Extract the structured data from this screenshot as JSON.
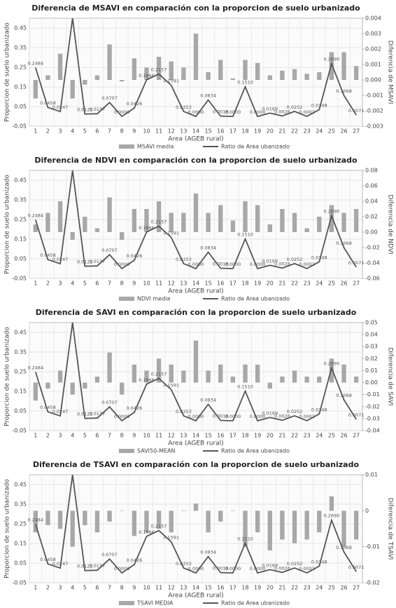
{
  "chart_data": [
    {
      "type": "bar-line",
      "title": "Diferencia de MSAVI en comparación con la proporcion de suelo urbanizado",
      "xlabel": "Area (AGEB rural)",
      "ylabel": "Proporcion de suelo urbanizado",
      "y2label": "Diferencia de MSAVI",
      "categories": [
        "1",
        "2",
        "3",
        "4",
        "5",
        "6",
        "7",
        "8",
        "9",
        "10",
        "11",
        "12",
        "13",
        "14",
        "15",
        "16",
        "17",
        "18",
        "19",
        "20",
        "21",
        "22",
        "23",
        "24",
        "25",
        "26",
        "27"
      ],
      "ylim": [
        -0.05,
        0.5
      ],
      "yticks": [
        -0.05,
        0.05,
        0.15,
        0.25,
        0.35,
        0.45
      ],
      "y2lim": [
        -0.003,
        0.004
      ],
      "y2ticks": [
        -0.003,
        -0.002,
        -0.001,
        {
          "value": 0,
          "label": "0.000"
        },
        0.001,
        0.002,
        0.003,
        0.004
      ],
      "grid": true,
      "legend": "bottom",
      "series": [
        {
          "name": "MSAVI media",
          "type": "bar",
          "axis": "y2",
          "color": "#a8a8a8",
          "values": [
            -0.0012,
            0.0003,
            0.0017,
            -0.0012,
            -0.0003,
            0.0003,
            0.0023,
            -0.0001,
            0.0014,
            0.0008,
            0.0015,
            0.0012,
            0.0008,
            0.003,
            0.0005,
            0.0013,
            0.0001,
            0.0013,
            0.0011,
            0.0003,
            0.0006,
            0.0007,
            0.0004,
            0.0005,
            0.0018,
            0.0018,
            0.0009
          ]
        },
        {
          "name": "Ratio de Area ubanizado",
          "type": "line",
          "axis": "y",
          "color": "#555555",
          "values": [
            0.2484,
            0.0458,
            0.0247,
            0.5,
            0.0122,
            0.0137,
            0.0707,
            0.0,
            0.0426,
            0.1866,
            0.2157,
            0.1591,
            0.0253,
            0.0,
            0.0834,
            0.0019,
            0.0,
            0.151,
            0.0,
            0.0169,
            0.0026,
            0.0252,
            0.0002,
            0.0348,
            0.269,
            0.1068,
            0.0071
          ],
          "value_labels": [
            "0.2484",
            "0.0458",
            "0.0247",
            null,
            "0.0122",
            "0.0137",
            "0.0707",
            "0.0000",
            "0.0426",
            "0.1866",
            "0.2157",
            "0.1591",
            "0.0253",
            "0.0000",
            "0.0834",
            "0.0019",
            "0.0000",
            "0.1510",
            "0.0000",
            "0.0169",
            "0.0026",
            "0.0252",
            "0.0002",
            "0.0348",
            "0.2690",
            "0.1068",
            "0.0071"
          ]
        }
      ]
    },
    {
      "type": "bar-line",
      "title": "Diferencia de NDVI en comparación con la proporcion de suelo urbanizado",
      "xlabel": "Area (AGEB rural)",
      "ylabel": "Proporcion de suelo urbanizado",
      "y2label": "Diferencia de NDVI",
      "categories": [
        "1",
        "2",
        "3",
        "4",
        "5",
        "6",
        "7",
        "8",
        "9",
        "10",
        "11",
        "12",
        "13",
        "14",
        "15",
        "16",
        "17",
        "18",
        "19",
        "20",
        "21",
        "22",
        "23",
        "24",
        "25",
        "26",
        "27"
      ],
      "ylim": [
        -0.05,
        0.5
      ],
      "yticks": [
        -0.05,
        0.05,
        0.15,
        0.25,
        0.35,
        0.45
      ],
      "y2lim": [
        -0.06,
        0.08
      ],
      "y2ticks": [
        -0.06,
        -0.04,
        -0.02,
        {
          "value": 0,
          "label": "0.00"
        },
        0.02,
        0.04,
        0.06,
        0.08
      ],
      "grid": true,
      "legend": "bottom",
      "series": [
        {
          "name": "NDVI media",
          "type": "bar",
          "axis": "y2",
          "color": "#a8a8a8",
          "values": [
            0.01,
            0.025,
            0.04,
            -0.01,
            0.02,
            0.005,
            0.045,
            -0.01,
            0.03,
            0.03,
            0.04,
            0.025,
            0.025,
            0.05,
            0.025,
            0.035,
            0.015,
            0.04,
            0.035,
            0.01,
            0.03,
            0.025,
            0.005,
            0.02,
            0.035,
            0.025,
            0.03
          ]
        },
        {
          "name": "Ratio de Area ubanizado",
          "type": "line",
          "axis": "y",
          "color": "#555555",
          "values": [
            0.2484,
            0.0458,
            0.0247,
            0.5,
            0.0122,
            0.0137,
            0.0707,
            0.0,
            0.0426,
            0.1866,
            0.2157,
            0.1591,
            0.0253,
            0.0,
            0.0834,
            0.0019,
            0.0,
            0.151,
            0.0,
            0.0169,
            0.0026,
            0.0252,
            0.0002,
            0.0348,
            0.269,
            0.1068,
            0.0071
          ],
          "value_labels": [
            "0.2484",
            "0.0458",
            "0.0247",
            null,
            "0.0122",
            "0.0137",
            "0.0707",
            "0.0000",
            "0.0426",
            "0.1866",
            "0.2157",
            "0.1591",
            "0.0253",
            "0.0000",
            "0.0834",
            "0.0019",
            "0.0000",
            "0.1510",
            "0.0000",
            "0.0169",
            "0.0026",
            "0.0252",
            "0.0002",
            "0.0348",
            "0.2690",
            "0.1068",
            "0.0071"
          ]
        }
      ]
    },
    {
      "type": "bar-line",
      "title": "Diferencia de SAVI en comparación con la proporcion de suelo urbanizado",
      "xlabel": "Area (AGEB rural)",
      "ylabel": "Proporcion de suelo urbanizado",
      "y2label": "Diferencia de SAVI",
      "categories": [
        "1",
        "2",
        "3",
        "4",
        "5",
        "6",
        "7",
        "8",
        "9",
        "10",
        "11",
        "12",
        "13",
        "14",
        "15",
        "16",
        "17",
        "18",
        "19",
        "20",
        "21",
        "22",
        "23",
        "24",
        "25",
        "26",
        "27"
      ],
      "ylim": [
        -0.05,
        0.5
      ],
      "yticks": [
        -0.05,
        0.05,
        0.15,
        0.25,
        0.35,
        0.45
      ],
      "y2lim": [
        -0.04,
        0.05
      ],
      "y2ticks": [
        -0.04,
        -0.03,
        -0.02,
        -0.01,
        {
          "value": 0,
          "label": "0.00"
        },
        0.01,
        0.02,
        0.03,
        0.04,
        0.05
      ],
      "grid": true,
      "legend": "bottom",
      "series": [
        {
          "name": "SAVI50-MEAN",
          "type": "bar",
          "axis": "y2",
          "color": "#a8a8a8",
          "values": [
            -0.015,
            -0.005,
            0.01,
            -0.01,
            -0.005,
            0.005,
            0.025,
            -0.01,
            0.015,
            0.01,
            0.02,
            0.015,
            0.01,
            0.035,
            0.01,
            0.015,
            0.005,
            0.015,
            0.015,
            -0.005,
            0.005,
            0.01,
            0.005,
            0.005,
            0.02,
            0.015,
            0.005
          ]
        },
        {
          "name": "Ratio de Area ubanizado",
          "type": "line",
          "axis": "y",
          "color": "#555555",
          "values": [
            0.2484,
            0.0458,
            0.0247,
            0.5,
            0.0122,
            0.0137,
            0.0707,
            0.0,
            0.0426,
            0.1866,
            0.2157,
            0.1591,
            0.0253,
            0.0,
            0.0834,
            0.0019,
            0.0,
            0.151,
            0.0,
            0.0169,
            0.0026,
            0.0252,
            0.0002,
            0.0348,
            0.269,
            0.1068,
            0.0071
          ],
          "value_labels": [
            "0.2484",
            "0.0458",
            "0.0247",
            null,
            "0.0122",
            "0.0137",
            "0.0707",
            "0.0000",
            "0.0426",
            "0.1866",
            "0.2157",
            "0.1591",
            "0.0253",
            "0.0000",
            "0.0834",
            "0.0019",
            "0.0000",
            "0.1510",
            "0.0000",
            "0.0169",
            "0.0026",
            "0.0252",
            "0.0002",
            "0.0348",
            "0.2690",
            "0.1068",
            "0.0071"
          ]
        }
      ]
    },
    {
      "type": "bar-line",
      "title": "Diferencia de TSAVI en comparación con la proporcion de suelo urbanizado",
      "xlabel": "Area (AGEB rural)",
      "ylabel": "Proporcion de suelo urbanizado",
      "y2label": "Diferencia de TSAVI",
      "categories": [
        "1",
        "2",
        "3",
        "4",
        "5",
        "6",
        "7",
        "8",
        "9",
        "10",
        "11",
        "12",
        "13",
        "14",
        "15",
        "16",
        "17",
        "18",
        "19",
        "20",
        "21",
        "22",
        "23",
        "24",
        "25",
        "26",
        "27"
      ],
      "ylim": [
        -0.05,
        0.5
      ],
      "yticks": [
        -0.05,
        0.05,
        0.15,
        0.25,
        0.35,
        0.45
      ],
      "y2lim": [
        -0.02,
        0.01
      ],
      "y2ticks": [
        -0.02,
        -0.01,
        0,
        0.01
      ],
      "grid": true,
      "legend": "bottom",
      "series": [
        {
          "name": "TSAVI MEDIA",
          "type": "bar",
          "axis": "y2",
          "color": "#a8a8a8",
          "values": [
            -0.006,
            -0.004,
            -0.005,
            -0.01,
            -0.004,
            -0.006,
            -0.003,
            0,
            -0.007,
            -0.006,
            -0.005,
            -0.006,
            0,
            0.002,
            -0.006,
            -0.003,
            0,
            -0.01,
            -0.006,
            -0.011,
            -0.008,
            -0.009,
            -0.008,
            -0.006,
            0.004,
            -0.01,
            -0.008
          ]
        },
        {
          "name": "Ratio de Area ubanizado",
          "type": "line",
          "axis": "y",
          "color": "#555555",
          "values": [
            0.2484,
            0.0458,
            0.0247,
            0.5,
            0.0122,
            0.0137,
            0.0707,
            0.0,
            0.0426,
            0.1866,
            0.2157,
            0.1591,
            0.0253,
            0.0,
            0.0834,
            0.0019,
            0.0,
            0.151,
            0.0,
            0.0169,
            0.0026,
            0.0252,
            0.0002,
            0.0348,
            0.269,
            0.1068,
            0.0071
          ],
          "value_labels": [
            "0.2484",
            "0.0458",
            "0.0247",
            null,
            "0.0122",
            "0.0137",
            "0.0707",
            "0.0000",
            "0.0426",
            "0.1866",
            "0.2157",
            "0.1591",
            "0.0253",
            "0.0000",
            "0.0834",
            "0.0019",
            "0.0000",
            "0.1510",
            "0.0000",
            "0.0169",
            "0.0026",
            "0.0252",
            "0.0002",
            "0.0348",
            "0.2690",
            "0.1068",
            "0.0071"
          ]
        }
      ]
    }
  ]
}
